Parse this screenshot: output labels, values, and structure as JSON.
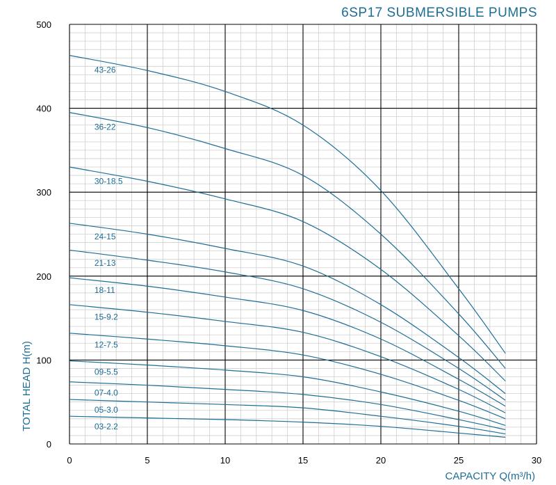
{
  "chart_data": {
    "type": "line",
    "title": "6SP17 SUBMERSIBLE PUMPS",
    "xlabel": "CAPACITY Q(m³/h)",
    "ylabel": "TOTAL HEAD H(m)",
    "xlim": [
      0,
      30
    ],
    "ylim": [
      0,
      500
    ],
    "x_ticks": [
      0,
      5,
      10,
      15,
      20,
      25,
      30
    ],
    "y_ticks": [
      0,
      100,
      200,
      300,
      400,
      500
    ],
    "grid": true,
    "minor_grid": true,
    "series": [
      {
        "name": "43-26",
        "x": [
          0,
          5,
          10,
          15,
          20,
          25,
          28
        ],
        "values": [
          463,
          445,
          420,
          380,
          302,
          185,
          108
        ]
      },
      {
        "name": "36-22",
        "x": [
          0,
          5,
          10,
          15,
          20,
          25,
          28
        ],
        "values": [
          395,
          377,
          352,
          320,
          250,
          155,
          90
        ]
      },
      {
        "name": "30-18.5",
        "x": [
          0,
          5,
          10,
          15,
          20,
          25,
          28
        ],
        "values": [
          330,
          313,
          292,
          265,
          208,
          129,
          75
        ]
      },
      {
        "name": "24-15",
        "x": [
          0,
          5,
          10,
          15,
          20,
          25,
          28
        ],
        "values": [
          263,
          250,
          233,
          212,
          166,
          103,
          60
        ]
      },
      {
        "name": "21-13",
        "x": [
          0,
          5,
          10,
          15,
          20,
          25,
          28
        ],
        "values": [
          231,
          219,
          205,
          185,
          145,
          90,
          52
        ]
      },
      {
        "name": "18-11",
        "x": [
          0,
          5,
          10,
          15,
          20,
          25,
          28
        ],
        "values": [
          198,
          188,
          175,
          159,
          125,
          77,
          45
        ]
      },
      {
        "name": "15-9.2",
        "x": [
          0,
          5,
          10,
          15,
          20,
          25,
          28
        ],
        "values": [
          166,
          157,
          146,
          133,
          104,
          65,
          37
        ]
      },
      {
        "name": "12-7.5",
        "x": [
          0,
          5,
          10,
          15,
          20,
          25,
          28
        ],
        "values": [
          132,
          125,
          117,
          106,
          83,
          52,
          30
        ]
      },
      {
        "name": "09-5.5",
        "x": [
          0,
          5,
          10,
          15,
          20,
          25,
          28
        ],
        "values": [
          99,
          94,
          88,
          80,
          62,
          39,
          22
        ]
      },
      {
        "name": "07-4.0",
        "x": [
          0,
          5,
          10,
          15,
          20,
          25,
          28
        ],
        "values": [
          74,
          70,
          65,
          59,
          47,
          29,
          17
        ]
      },
      {
        "name": "05-3.0",
        "x": [
          0,
          5,
          10,
          15,
          20,
          25,
          28
        ],
        "values": [
          53,
          50,
          47,
          43,
          33,
          21,
          12
        ]
      },
      {
        "name": "03-2.2",
        "x": [
          0,
          5,
          10,
          15,
          20,
          25,
          28
        ],
        "values": [
          33,
          31,
          29,
          26,
          21,
          13,
          8
        ]
      }
    ],
    "curve_label_x": 1.6
  }
}
